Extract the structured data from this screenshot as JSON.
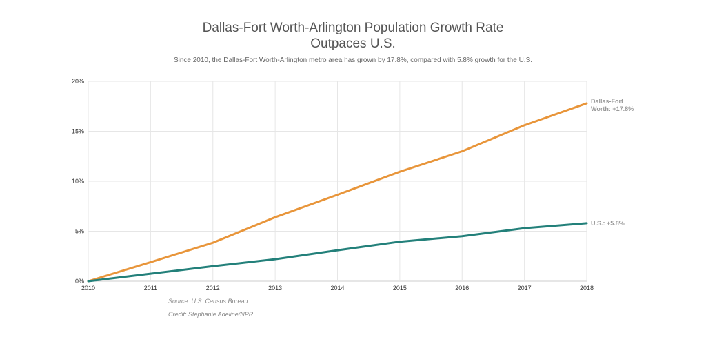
{
  "chart_data": {
    "type": "line",
    "title_line1": "Dallas-Fort Worth-Arlington Population Growth Rate",
    "title_line2": "Outpaces U.S.",
    "subtitle": "Since 2010, the Dallas-Fort Worth-Arlington metro area has grown by 17.8%, compared with 5.8% growth for the U.S.",
    "x": [
      "2010",
      "2011",
      "2012",
      "2013",
      "2014",
      "2015",
      "2016",
      "2017",
      "2018"
    ],
    "ylim": [
      0,
      20
    ],
    "yticks": [
      0,
      5,
      10,
      15,
      20
    ],
    "ytick_labels": [
      "0%",
      "5%",
      "10%",
      "15%",
      "20%"
    ],
    "grid": true,
    "series": [
      {
        "name": "Dallas-Fort Worth",
        "label_line1": "Dallas-Fort",
        "label_line2": "Worth: +17.8%",
        "color": "#e8953a",
        "values": [
          0,
          1.9,
          3.85,
          6.4,
          8.65,
          10.95,
          13.0,
          15.6,
          17.8
        ]
      },
      {
        "name": "U.S.",
        "label_line1": "U.S.: +5.8%",
        "color": "#23807a",
        "values": [
          0,
          0.75,
          1.5,
          2.2,
          3.1,
          3.95,
          4.5,
          5.3,
          5.8
        ]
      }
    ],
    "source": "Source: U.S. Census Bureau",
    "credit": "Credit: Stephanie Adeline/NPR"
  }
}
